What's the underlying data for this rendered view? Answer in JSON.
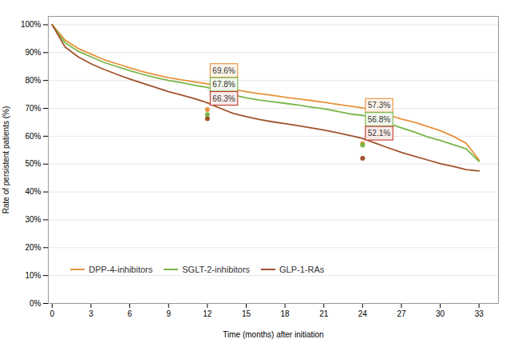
{
  "chart_data": {
    "type": "line",
    "xlabel": "Time (months) after initiation",
    "ylabel": "Rate of persistent patients (%)",
    "xlim": [
      -0.3,
      34.5
    ],
    "ylim": [
      0,
      103
    ],
    "xticks": [
      0,
      3,
      6,
      9,
      12,
      15,
      18,
      21,
      24,
      27,
      30,
      33
    ],
    "yticks": [
      {
        "value": 0,
        "label": "0%"
      },
      {
        "value": 10,
        "label": "10%"
      },
      {
        "value": 20,
        "label": "20%"
      },
      {
        "value": 30,
        "label": "30%"
      },
      {
        "value": 40,
        "label": "40%"
      },
      {
        "value": 50,
        "label": "50%"
      },
      {
        "value": 60,
        "label": "60%"
      },
      {
        "value": 70,
        "label": "70%"
      },
      {
        "value": 80,
        "label": "80%"
      },
      {
        "value": 90,
        "label": "90%"
      },
      {
        "value": 100,
        "label": "100%"
      }
    ],
    "grid": "y",
    "legend": "lower left",
    "x": [
      0,
      1,
      2,
      3,
      4,
      5,
      6,
      7,
      8,
      9,
      10,
      11,
      12,
      13,
      14,
      15,
      16,
      17,
      18,
      19,
      20,
      21,
      22,
      23,
      24,
      25,
      26,
      27,
      28,
      29,
      30,
      31,
      32,
      33
    ],
    "series": [
      {
        "name": "DPP-4-inhibitors",
        "color": "#E8923C",
        "values": [
          100,
          94.5,
          91.5,
          89.5,
          87.5,
          86.0,
          84.5,
          83.2,
          82.0,
          81.0,
          80.2,
          79.5,
          78.8,
          77.8,
          76.8,
          76.0,
          75.3,
          74.7,
          74.0,
          73.4,
          72.8,
          72.2,
          71.5,
          70.8,
          70.2,
          68.8,
          67.5,
          66.2,
          65.0,
          63.5,
          62.0,
          60.0,
          57.5,
          51.5
        ]
      },
      {
        "name": "SGLT-2-inhibitors",
        "color": "#7AB648",
        "values": [
          100,
          93.5,
          90.5,
          88.5,
          86.5,
          85.0,
          83.5,
          82.2,
          81.0,
          80.0,
          79.2,
          78.3,
          77.5,
          76.0,
          74.8,
          73.8,
          73.0,
          72.4,
          71.8,
          71.2,
          70.5,
          69.8,
          69.0,
          68.0,
          67.5,
          66.0,
          64.5,
          63.0,
          61.5,
          59.8,
          58.5,
          57.0,
          55.5,
          51.0
        ]
      },
      {
        "name": "GLP-1-RAs",
        "color": "#A0522D",
        "values": [
          100,
          92.0,
          88.5,
          86.0,
          84.0,
          82.2,
          80.5,
          79.0,
          77.5,
          76.0,
          74.8,
          73.5,
          72.0,
          70.0,
          68.2,
          67.0,
          66.0,
          65.2,
          64.5,
          63.8,
          63.0,
          62.2,
          61.3,
          60.3,
          59.2,
          57.5,
          55.8,
          54.2,
          52.8,
          51.5,
          50.2,
          49.2,
          48.0,
          47.5
        ]
      }
    ],
    "points": [
      {
        "x": 24,
        "y": 57.3,
        "color": "#E8923C"
      },
      {
        "x": 24,
        "y": 56.8,
        "color": "#7AB648"
      },
      {
        "x": 24,
        "y": 52.1,
        "color": "#A0522D"
      },
      {
        "x": 12,
        "y": 69.6,
        "color": "#E8923C"
      },
      {
        "x": 12,
        "y": 67.8,
        "color": "#7AB648"
      },
      {
        "x": 12,
        "y": 66.3,
        "color": "#A0522D"
      }
    ],
    "annotations": [
      {
        "text": "69.6%",
        "x": 12.4,
        "y": 83.5,
        "color": "#E8923C"
      },
      {
        "text": "67.8%",
        "x": 12.4,
        "y": 78.5,
        "color": "#7AB648"
      },
      {
        "text": "66.3%",
        "x": 12.4,
        "y": 73.5,
        "color": "#C0392B"
      },
      {
        "text": "57.3%",
        "x": 24.4,
        "y": 71.0,
        "color": "#E8923C"
      },
      {
        "text": "56.8%",
        "x": 24.4,
        "y": 66.0,
        "color": "#7AB648"
      },
      {
        "text": "52.1%",
        "x": 24.4,
        "y": 61.0,
        "color": "#C0392B"
      }
    ]
  }
}
